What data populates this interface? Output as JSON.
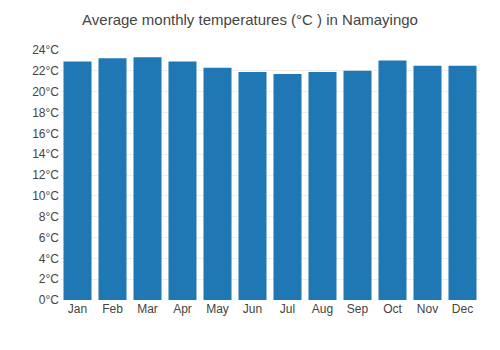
{
  "chart_data": {
    "type": "bar",
    "title": "Average monthly temperatures (°C ) in Namayingo",
    "categories": [
      "Jan",
      "Feb",
      "Mar",
      "Apr",
      "May",
      "Jun",
      "Jul",
      "Aug",
      "Sep",
      "Oct",
      "Nov",
      "Dec"
    ],
    "values": [
      22.9,
      23.2,
      23.3,
      22.9,
      22.3,
      21.9,
      21.7,
      21.9,
      22.0,
      23.0,
      22.5,
      22.5
    ],
    "ylim": [
      0,
      24
    ],
    "yticks": [
      {
        "value": 0,
        "label": "0°C"
      },
      {
        "value": 2,
        "label": "2°C"
      },
      {
        "value": 4,
        "label": "4°C"
      },
      {
        "value": 6,
        "label": "6°C"
      },
      {
        "value": 8,
        "label": "8°C"
      },
      {
        "value": 10,
        "label": "10°C"
      },
      {
        "value": 12,
        "label": "12°C"
      },
      {
        "value": 14,
        "label": "14°C"
      },
      {
        "value": 16,
        "label": "16°C"
      },
      {
        "value": 18,
        "label": "18°C"
      },
      {
        "value": 20,
        "label": "20°C"
      },
      {
        "value": 22,
        "label": "22°C"
      },
      {
        "value": 24,
        "label": "24°C"
      }
    ],
    "grid": true
  }
}
